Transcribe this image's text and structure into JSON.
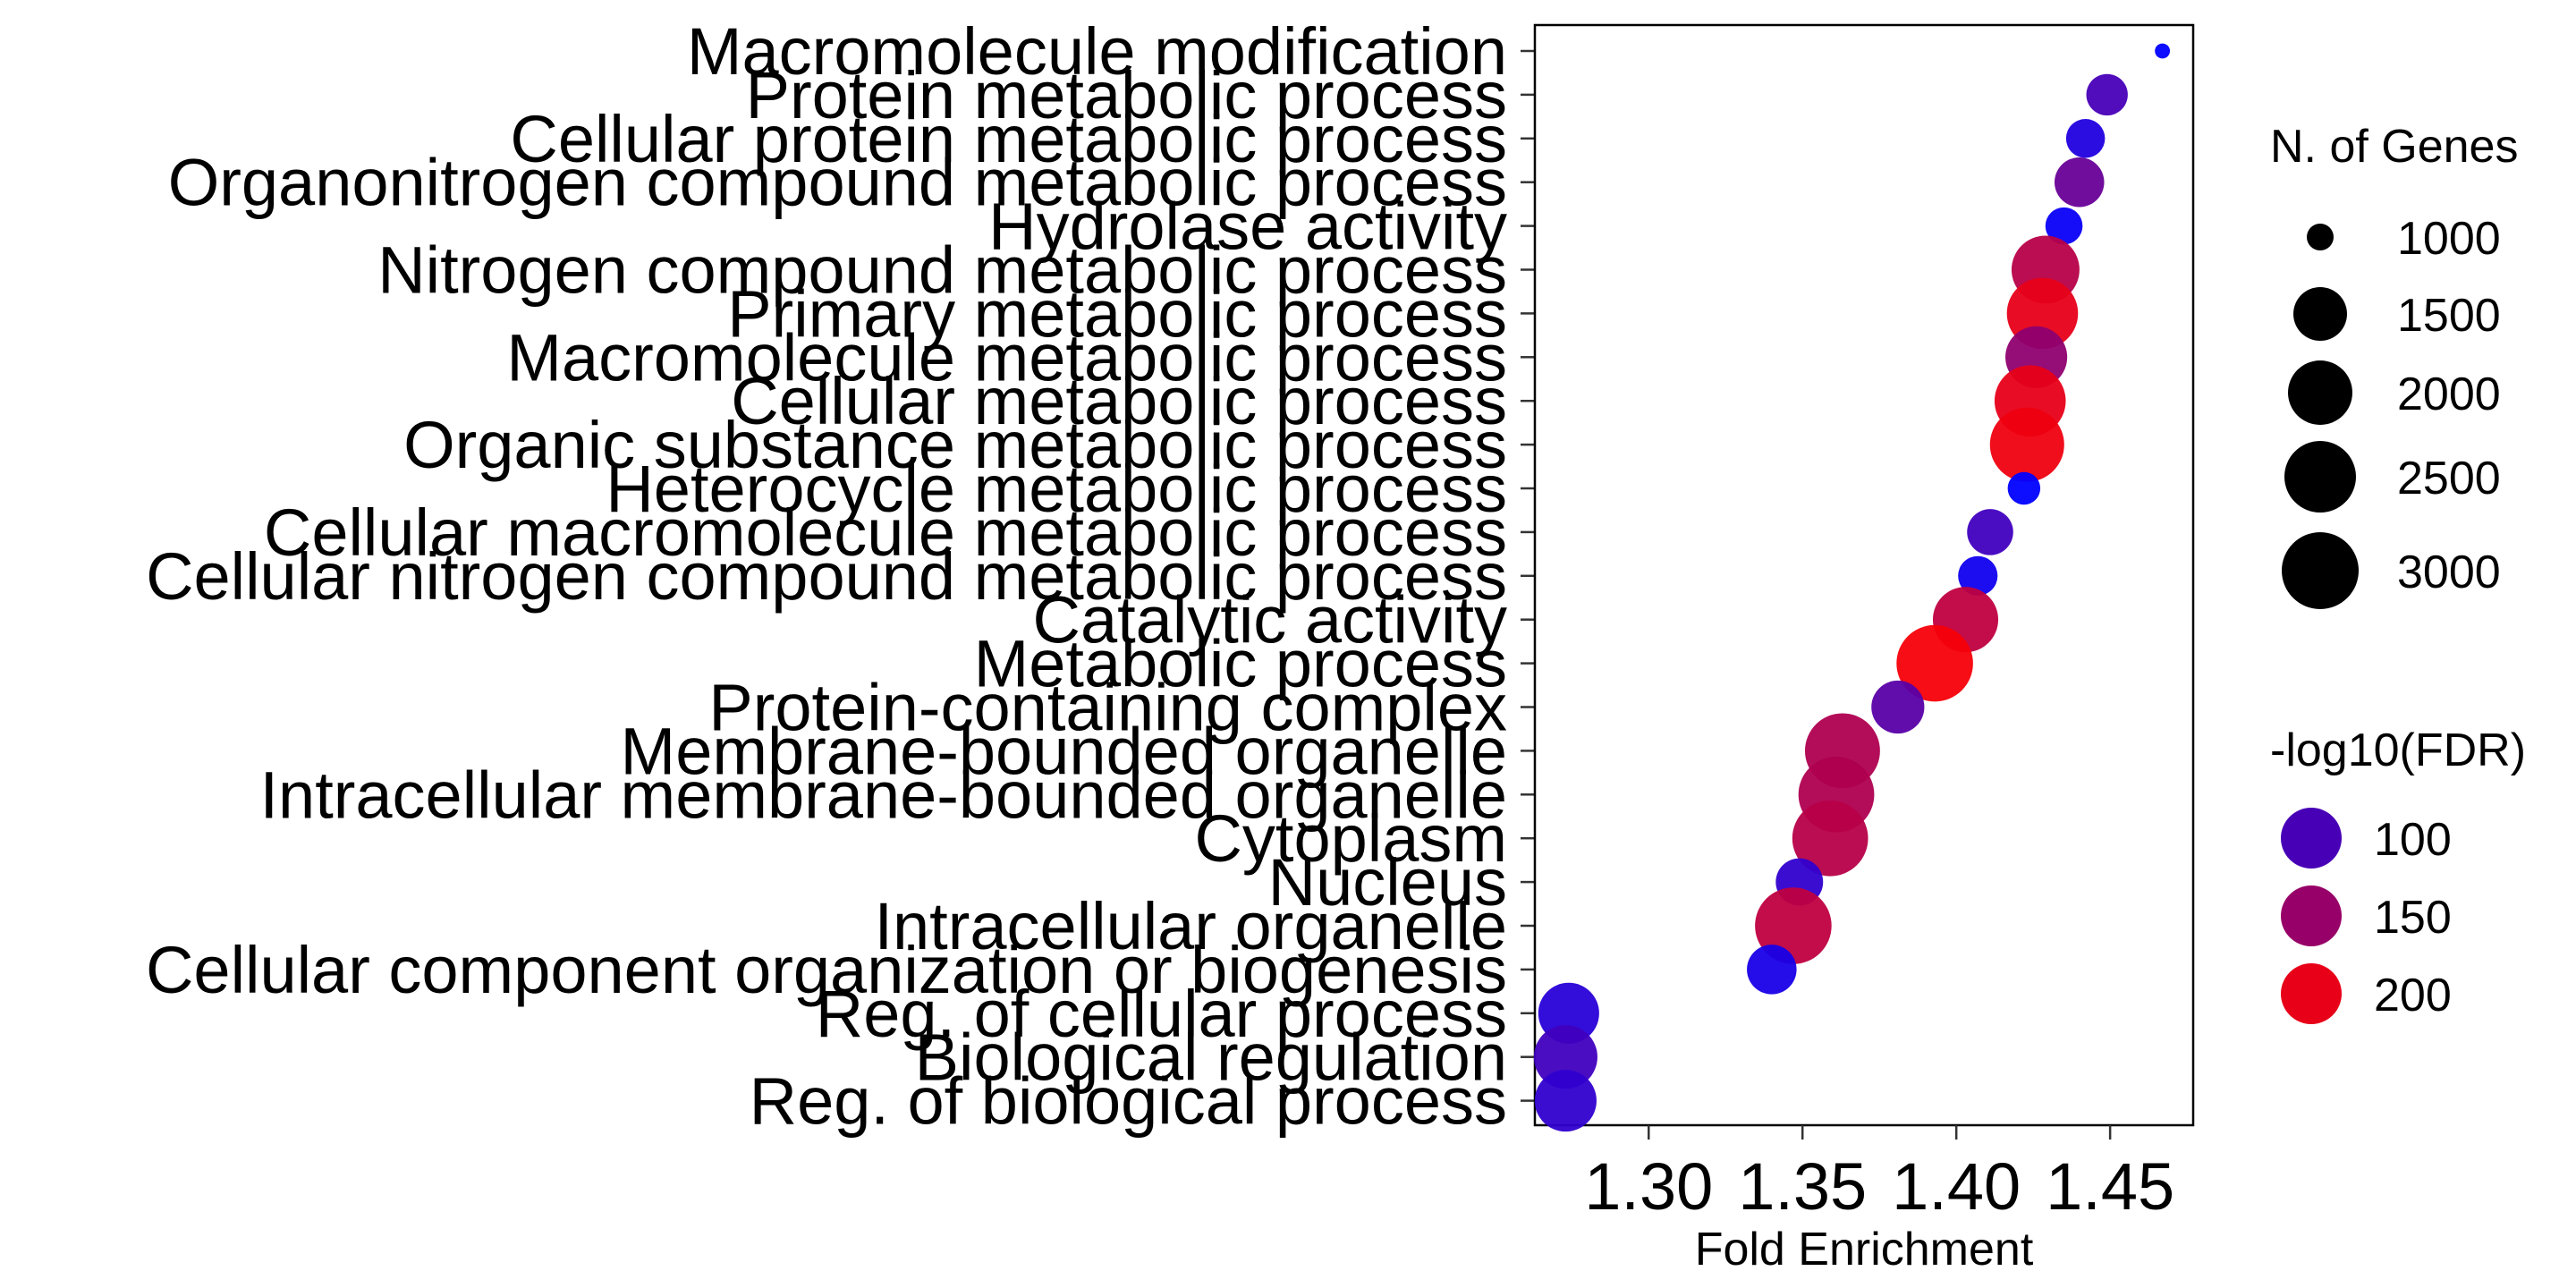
{
  "chart_data": {
    "type": "scatter",
    "title": "",
    "xlabel": "Fold Enrichment",
    "ylabel": "",
    "xlim": [
      1.263,
      1.477
    ],
    "xticks": [
      1.3,
      1.35,
      1.4,
      1.45
    ],
    "xtick_labels": [
      "1.30",
      "1.35",
      "1.40",
      "1.45"
    ],
    "grid": false,
    "color_low": "#0000ff",
    "color_high": "#ff0000",
    "fdr_range": [
      55,
      215
    ],
    "size_range": [
      550,
      3200
    ],
    "points": [
      {
        "term": "Macromolecule modification",
        "fold": 1.467,
        "genes": 560,
        "fdr": 55
      },
      {
        "term": "Protein metabolic process",
        "fold": 1.449,
        "genes": 1220,
        "fdr": 100
      },
      {
        "term": "Cellular protein metabolic process",
        "fold": 1.442,
        "genes": 1130,
        "fdr": 75
      },
      {
        "term": "Organonitrogen compound metabolic process",
        "fold": 1.44,
        "genes": 1550,
        "fdr": 120
      },
      {
        "term": "Hydrolase activity",
        "fold": 1.435,
        "genes": 1070,
        "fdr": 60
      },
      {
        "term": "Nitrogen compound metabolic process",
        "fold": 1.429,
        "genes": 2500,
        "fdr": 170
      },
      {
        "term": "Primary metabolic process",
        "fold": 1.428,
        "genes": 2700,
        "fdr": 200
      },
      {
        "term": "Macromolecule metabolic process",
        "fold": 1.426,
        "genes": 2150,
        "fdr": 145
      },
      {
        "term": "Cellular metabolic process",
        "fold": 1.424,
        "genes": 2700,
        "fdr": 200
      },
      {
        "term": "Organic substance metabolic process",
        "fold": 1.423,
        "genes": 2900,
        "fdr": 205
      },
      {
        "term": "Heterocycle metabolic process",
        "fold": 1.422,
        "genes": 930,
        "fdr": 55
      },
      {
        "term": "Cellular macromolecule metabolic process",
        "fold": 1.411,
        "genes": 1400,
        "fdr": 95
      },
      {
        "term": "Cellular nitrogen compound metabolic process",
        "fold": 1.407,
        "genes": 1150,
        "fdr": 65
      },
      {
        "term": "Catalytic activity",
        "fold": 1.403,
        "genes": 2350,
        "fdr": 175
      },
      {
        "term": "Metabolic process",
        "fold": 1.393,
        "genes": 3050,
        "fdr": 210
      },
      {
        "term": "Protein-containing complex",
        "fold": 1.381,
        "genes": 1700,
        "fdr": 110
      },
      {
        "term": "Membrane-bounded organelle",
        "fold": 1.363,
        "genes": 2950,
        "fdr": 165
      },
      {
        "term": "Intracellular membrane-bounded organelle",
        "fold": 1.361,
        "genes": 3000,
        "fdr": 165
      },
      {
        "term": "Cytoplasm",
        "fold": 1.359,
        "genes": 3000,
        "fdr": 170
      },
      {
        "term": "Nucleus",
        "fold": 1.349,
        "genes": 1450,
        "fdr": 85
      },
      {
        "term": "Intracellular organelle",
        "fold": 1.347,
        "genes": 3050,
        "fdr": 175
      },
      {
        "term": "Cellular component organization or biogenesis",
        "fold": 1.34,
        "genes": 1550,
        "fdr": 70
      },
      {
        "term": "Reg. of cellular process",
        "fold": 1.274,
        "genes": 2100,
        "fdr": 80
      },
      {
        "term": "Biological regulation",
        "fold": 1.273,
        "genes": 2250,
        "fdr": 95
      },
      {
        "term": "Reg. of biological process",
        "fold": 1.273,
        "genes": 2150,
        "fdr": 85
      }
    ],
    "legend": {
      "size_title": "N. of Genes",
      "size_entries": [
        {
          "label": "1000",
          "value": 1000
        },
        {
          "label": "1500",
          "value": 1500
        },
        {
          "label": "2000",
          "value": 2000
        },
        {
          "label": "2500",
          "value": 2500
        },
        {
          "label": "3000",
          "value": 3000
        }
      ],
      "color_title": "-log10(FDR)",
      "color_entries": [
        {
          "label": "100",
          "value": 100
        },
        {
          "label": "150",
          "value": 150
        },
        {
          "label": "200",
          "value": 200
        }
      ],
      "placement": "right"
    }
  }
}
